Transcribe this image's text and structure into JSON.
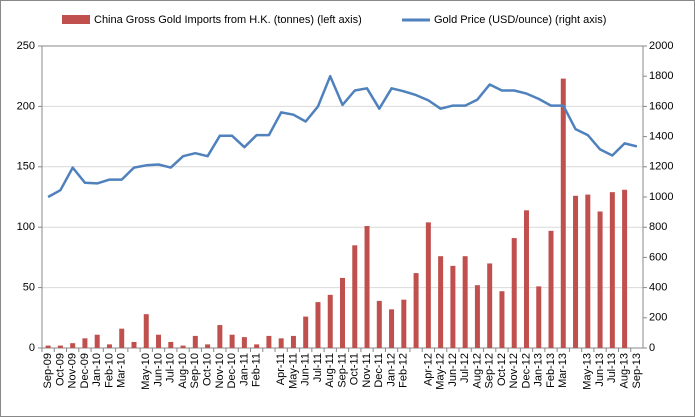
{
  "chart_data": {
    "type": "bar+line",
    "categories": [
      "Sep-09",
      "Oct-09",
      "Nov-09",
      "Dec-09",
      "Jan-10",
      "Feb-10",
      "Mar-10",
      null,
      "May-10",
      "Jun-10",
      "Jul-10",
      "Aug-10",
      "Sep-10",
      "Oct-10",
      "Nov-10",
      "Dec-10",
      "Jan-11",
      "Feb-11",
      null,
      "Apr-11",
      "May-11",
      "Jun-11",
      "Jul-11",
      "Aug-11",
      "Sep-11",
      "Oct-11",
      "Nov-11",
      "Dec-11",
      "Jan-12",
      "Feb-12",
      null,
      "Apr-12",
      "May-12",
      "Jun-12",
      "Jul-12",
      "Aug-12",
      "Sep-12",
      "Oct-12",
      "Nov-12",
      "Dec-12",
      "Jan-13",
      "Feb-13",
      "Mar-13",
      null,
      "May-13",
      "Jun-13",
      "Jul-13",
      "Aug-13",
      "Sep-13"
    ],
    "series": [
      {
        "name": "China Gross Gold Imports from H.K. (tonnes) (left axis)",
        "color": "#c0504d",
        "type": "bar",
        "axis": "y",
        "values": [
          2,
          2,
          4,
          8,
          11,
          3,
          16,
          5,
          28,
          11,
          5,
          2,
          10,
          3,
          19,
          11,
          9,
          3,
          10,
          8,
          10,
          26,
          38,
          44,
          58,
          85,
          101,
          39,
          32,
          40,
          62,
          104,
          76,
          68,
          76,
          52,
          70,
          47,
          91,
          114,
          51,
          97,
          223,
          126,
          127,
          113,
          129,
          131,
          null
        ]
      },
      {
        "name": "Gold Price (USD/ounce) (right axis)",
        "color": "#4f81bd",
        "type": "line",
        "axis": "y2",
        "values": [
          1000,
          1045,
          1195,
          1095,
          1090,
          1115,
          1115,
          1195,
          1210,
          1215,
          1195,
          1270,
          1290,
          1270,
          1405,
          1405,
          1330,
          1410,
          1410,
          1560,
          1545,
          1500,
          1600,
          1800,
          1610,
          1705,
          1720,
          1585,
          1720,
          1700,
          1675,
          1640,
          1585,
          1605,
          1605,
          1645,
          1745,
          1705,
          1705,
          1685,
          1650,
          1605,
          1605,
          1450,
          1410,
          1315,
          1275,
          1355,
          1335
        ]
      }
    ],
    "ylim": [
      0,
      250
    ],
    "yticks": [
      0,
      50,
      100,
      150,
      200,
      250
    ],
    "y2lim": [
      0,
      2000
    ],
    "y2ticks": [
      0,
      200,
      400,
      600,
      800,
      1000,
      1200,
      1400,
      1600,
      1800,
      2000
    ],
    "grid": true
  }
}
